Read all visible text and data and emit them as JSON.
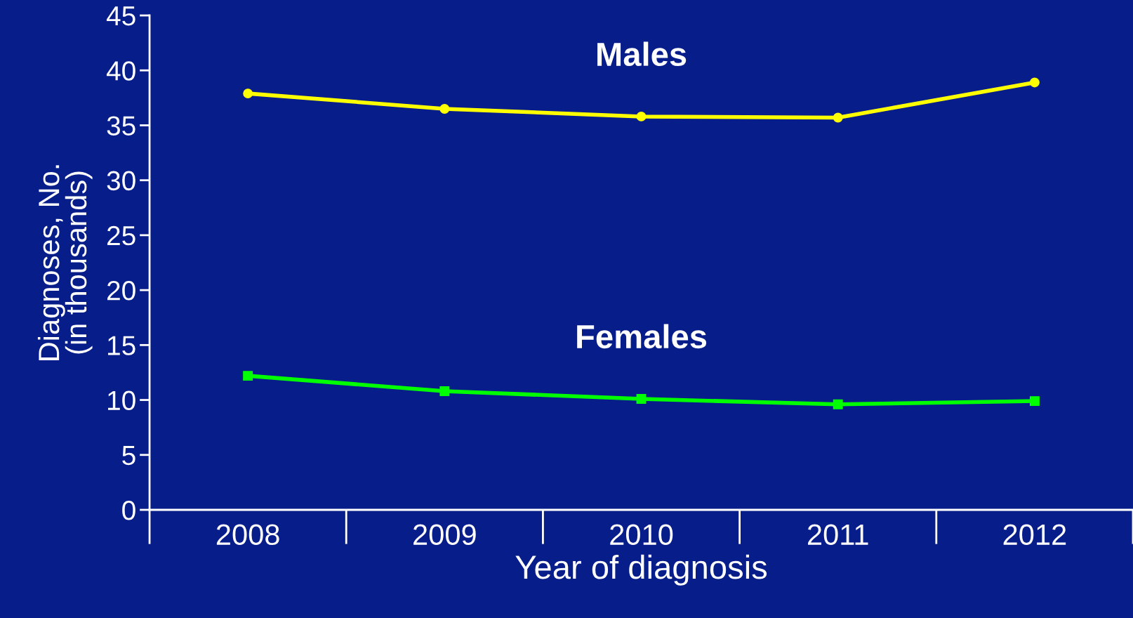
{
  "chart_data": {
    "type": "line",
    "xlabel": "Year of diagnosis",
    "ylabel": "Diagnoses, No.\n(in thousands)",
    "categories": [
      "2008",
      "2009",
      "2010",
      "2011",
      "2012"
    ],
    "series": [
      {
        "name": "Males",
        "color": "#ffff00",
        "marker": "circle",
        "values": [
          37.9,
          36.5,
          35.8,
          35.7,
          38.9
        ]
      },
      {
        "name": "Females",
        "color": "#00ff00",
        "marker": "square",
        "values": [
          12.2,
          10.8,
          10.1,
          9.6,
          9.9
        ]
      }
    ],
    "ylim": [
      0,
      45
    ],
    "yticks": [
      0,
      5,
      10,
      15,
      20,
      25,
      30,
      35,
      40,
      45
    ],
    "grid": false,
    "legend": false
  }
}
